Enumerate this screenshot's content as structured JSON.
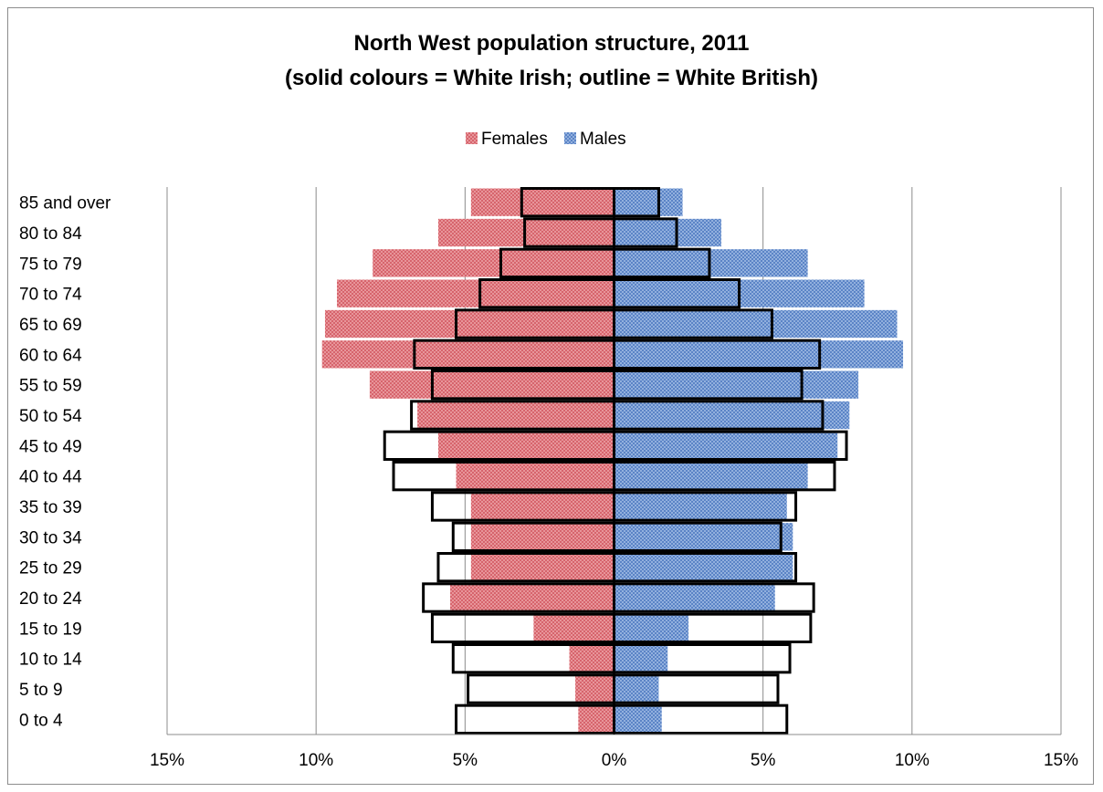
{
  "chart_data": {
    "type": "bar",
    "orientation": "horizontal-population-pyramid",
    "title": [
      "North West population structure, 2011",
      "(solid colours = White Irish; outline = White British)"
    ],
    "legend": {
      "position": "top",
      "entries": [
        "Females",
        "Males"
      ]
    },
    "categories": [
      "0 to 4",
      "5 to 9",
      "10 to 14",
      "15 to 19",
      "20 to 24",
      "25 to 29",
      "30 to 34",
      "35 to 39",
      "40 to 44",
      "45 to 49",
      "50 to 54",
      "55 to 59",
      "60 to 64",
      "65 to 69",
      "70 to 74",
      "75 to 79",
      "80 to 84",
      "85 and over"
    ],
    "x_ticks": [
      "15%",
      "10%",
      "5%",
      "0%",
      "5%",
      "10%",
      "15%"
    ],
    "xlim": [
      -15,
      15
    ],
    "grid": true,
    "series": [
      {
        "name": "Females",
        "group": "White Irish",
        "style": "solid",
        "color": "#e07a80",
        "values": [
          1.2,
          1.3,
          1.5,
          2.7,
          5.5,
          4.8,
          4.8,
          4.8,
          5.3,
          5.9,
          6.6,
          8.2,
          9.8,
          9.7,
          9.3,
          8.1,
          5.9,
          4.8
        ]
      },
      {
        "name": "Males",
        "group": "White Irish",
        "style": "solid",
        "color": "#6f95cf",
        "values": [
          1.6,
          1.5,
          1.8,
          2.5,
          5.4,
          6.0,
          6.0,
          5.8,
          6.5,
          7.5,
          7.9,
          8.2,
          9.7,
          9.5,
          8.4,
          6.5,
          3.6,
          2.3
        ]
      },
      {
        "name": "Females",
        "group": "White British",
        "style": "outline",
        "values": [
          5.3,
          4.9,
          5.4,
          6.1,
          6.4,
          5.9,
          5.4,
          6.1,
          7.4,
          7.7,
          6.8,
          6.1,
          6.7,
          5.3,
          4.5,
          3.8,
          3.0,
          3.1
        ]
      },
      {
        "name": "Males",
        "group": "White British",
        "style": "outline",
        "values": [
          5.8,
          5.5,
          5.9,
          6.6,
          6.7,
          6.1,
          5.6,
          6.1,
          7.4,
          7.8,
          7.0,
          6.3,
          6.9,
          5.3,
          4.2,
          3.2,
          2.1,
          1.5
        ]
      }
    ]
  }
}
